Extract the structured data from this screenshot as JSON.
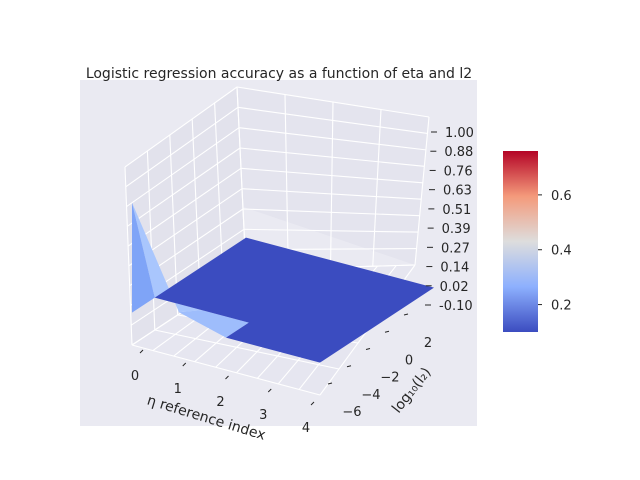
{
  "chart_data": {
    "type": "surface3d",
    "title": "Logistic regression accuracy as a function of eta and l2",
    "xlabel": "η reference index",
    "ylabel": "log₁₀(l₂)",
    "zlabel": "",
    "x_ticks": [
      "0",
      "1",
      "2",
      "3",
      "4"
    ],
    "y_ticks": [
      "−6",
      "−4",
      "−2",
      "0",
      "2"
    ],
    "z_ticks": [
      "-0.10",
      "0.02",
      "0.14",
      "0.27",
      "0.39",
      "0.51",
      "0.63",
      "0.76",
      "0.88",
      "1.00"
    ],
    "xlim": [
      0,
      4
    ],
    "ylim": [
      -7,
      3
    ],
    "zlim": [
      -0.1,
      1.0
    ],
    "surface": {
      "description_x": [
        0,
        1,
        2,
        3,
        4
      ],
      "description_y": [
        -7,
        -5,
        -3,
        -1,
        1,
        3
      ],
      "spike": {
        "x": 0,
        "y": -7,
        "z": 0.78
      },
      "base_value": 0.1,
      "notch": {
        "x": 1,
        "y": -7,
        "z": 0.18
      }
    },
    "colorbar": {
      "colormap": "coolwarm",
      "range": [
        0.1,
        0.76
      ],
      "ticks": [
        "0.2",
        "0.4",
        "0.6"
      ]
    },
    "pane_color": "#eaeaf2",
    "grid_color": "#ffffff",
    "surface_color": "#3b4cc0"
  }
}
